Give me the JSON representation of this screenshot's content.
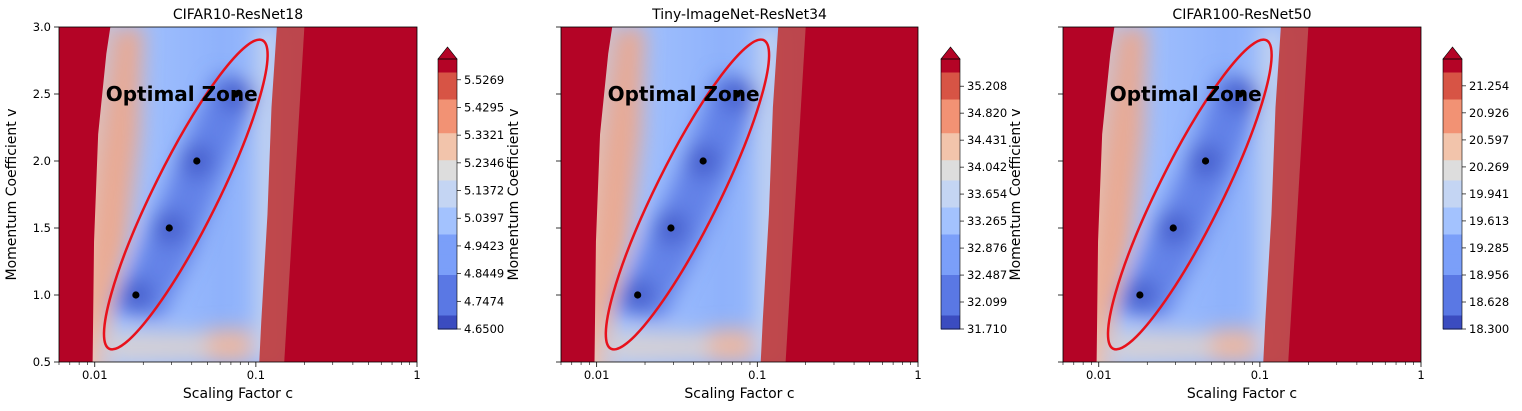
{
  "chart_data": [
    {
      "type": "contour",
      "title": "CIFAR10-ResNet18",
      "xlabel": "Scaling Factor c",
      "ylabel": "Momentum Coefficient v",
      "xscale": "log",
      "xlim": [
        0.006,
        1.0
      ],
      "ylim": [
        0.5,
        3.0
      ],
      "xticks": [
        "0.01",
        "0.1",
        "1"
      ],
      "yticks": [
        "0.5",
        "1.0",
        "1.5",
        "2.0",
        "2.5",
        "3.0"
      ],
      "annotation": "Optimal Zone",
      "points": [
        {
          "x": 0.018,
          "y": 1.0
        },
        {
          "x": 0.029,
          "y": 1.5
        },
        {
          "x": 0.043,
          "y": 2.0
        },
        {
          "x": 0.075,
          "y": 2.5
        }
      ],
      "colorbar": {
        "ticks": [
          "5.5269",
          "5.4295",
          "5.3321",
          "5.2346",
          "5.1372",
          "5.0397",
          "4.9423",
          "4.8449",
          "4.7474",
          "4.6500"
        ],
        "min": 4.65,
        "max": 5.6,
        "colormap": "coolwarm"
      }
    },
    {
      "type": "contour",
      "title": "Tiny-ImageNet-ResNet34",
      "xlabel": "Scaling Factor c",
      "ylabel": "Momentum Coefficient v",
      "xscale": "log",
      "xlim": [
        0.006,
        1.0
      ],
      "ylim": [
        0.5,
        3.0
      ],
      "xticks": [
        "0.01",
        "0.1",
        "1"
      ],
      "yticks": [
        "",
        "",
        "",
        "",
        "",
        ""
      ],
      "annotation": "Optimal Zone",
      "points": [
        {
          "x": 0.018,
          "y": 1.0
        },
        {
          "x": 0.029,
          "y": 1.5
        },
        {
          "x": 0.046,
          "y": 2.0
        },
        {
          "x": 0.075,
          "y": 2.5
        }
      ],
      "colorbar": {
        "ticks": [
          "35.208",
          "34.820",
          "34.431",
          "34.042",
          "33.654",
          "33.265",
          "32.876",
          "32.487",
          "32.099",
          "31.710"
        ],
        "min": 31.71,
        "max": 35.6,
        "colormap": "coolwarm"
      }
    },
    {
      "type": "contour",
      "title": "CIFAR100-ResNet50",
      "xlabel": "Scaling Factor c",
      "ylabel": "Momentum Coefficient v",
      "xscale": "log",
      "xlim": [
        0.006,
        1.0
      ],
      "ylim": [
        0.5,
        3.0
      ],
      "xticks": [
        "0.01",
        "0.1",
        "1"
      ],
      "yticks": [
        "",
        "",
        "",
        "",
        "",
        ""
      ],
      "annotation": "Optimal Zone",
      "points": [
        {
          "x": 0.018,
          "y": 1.0
        },
        {
          "x": 0.029,
          "y": 1.5
        },
        {
          "x": 0.046,
          "y": 2.0
        },
        {
          "x": 0.075,
          "y": 2.5
        }
      ],
      "colorbar": {
        "ticks": [
          "21.254",
          "20.926",
          "20.597",
          "20.269",
          "19.941",
          "19.613",
          "19.285",
          "18.956",
          "18.628",
          "18.300"
        ],
        "min": 18.3,
        "max": 21.58,
        "colormap": "coolwarm"
      }
    }
  ]
}
